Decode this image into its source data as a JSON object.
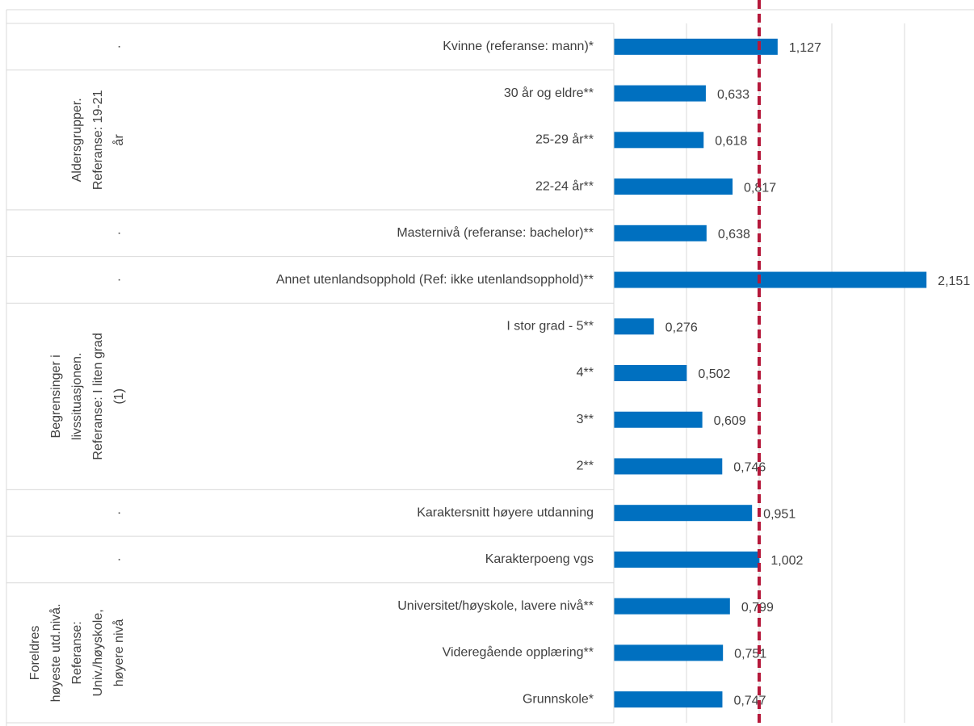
{
  "chart_data": {
    "type": "bar",
    "orientation": "horizontal",
    "color": "#0070c0",
    "xlim": [
      0,
      2.45
    ],
    "xticks": [
      0,
      0.5,
      1,
      1.5,
      2
    ],
    "grid": true,
    "reference_line": {
      "value": 1,
      "color": "#b5183a"
    },
    "groups": [
      {
        "label": [
          "·"
        ],
        "categories": [
          "Kvinne (referanse: mann)*"
        ],
        "values": [
          1.127
        ],
        "value_labels": [
          "1,127"
        ]
      },
      {
        "label": [
          "Aldersgrupper.",
          "Referanse: 19-21",
          "år"
        ],
        "categories": [
          "30 år og eldre**",
          "25-29 år**",
          "22-24 år**"
        ],
        "values": [
          0.633,
          0.618,
          0.817
        ],
        "value_labels": [
          "0,633",
          "0,618",
          "0,817"
        ]
      },
      {
        "label": [
          "·"
        ],
        "categories": [
          "Masternivå (referanse: bachelor)**"
        ],
        "values": [
          0.638
        ],
        "value_labels": [
          "0,638"
        ]
      },
      {
        "label": [
          "·"
        ],
        "categories": [
          "Annet utenlandsopphold (Ref: ikke utenlandsopphold)**"
        ],
        "values": [
          2.151
        ],
        "value_labels": [
          "2,151"
        ]
      },
      {
        "label": [
          "Begrensinger i",
          "livssituasjonen.",
          "Referanse: I liten grad",
          "(1)"
        ],
        "categories": [
          "I stor grad - 5**",
          "4**",
          "3**",
          "2**"
        ],
        "values": [
          0.276,
          0.502,
          0.609,
          0.746
        ],
        "value_labels": [
          "0,276",
          "0,502",
          "0,609",
          "0,746"
        ]
      },
      {
        "label": [
          "·"
        ],
        "categories": [
          "Karaktersnitt høyere utdanning"
        ],
        "values": [
          0.951
        ],
        "value_labels": [
          "0,951"
        ]
      },
      {
        "label": [
          "·"
        ],
        "categories": [
          "Karakterpoeng vgs"
        ],
        "values": [
          1.002
        ],
        "value_labels": [
          "1,002"
        ]
      },
      {
        "label": [
          "Foreldres",
          "høyeste utd.nivå.",
          "Referanse:",
          "Univ./høyskole,",
          "høyere nivå"
        ],
        "categories": [
          "Universitet/høyskole, lavere nivå**",
          "Videregående opplæring**",
          "Grunnskole*"
        ],
        "values": [
          0.799,
          0.751,
          0.747
        ],
        "value_labels": [
          "0,799",
          "0,751",
          "0,747"
        ]
      }
    ]
  }
}
